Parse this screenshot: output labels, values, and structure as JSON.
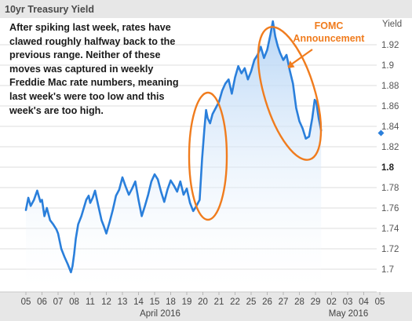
{
  "chart_data": {
    "type": "area",
    "title": "10yr Treasury Yield",
    "ylabel": "Yield",
    "ylim": [
      1.68,
      1.94
    ],
    "yticks": [
      "1.7",
      "1.72",
      "1.74",
      "1.76",
      "1.78",
      "1.8",
      "1.82",
      "1.84",
      "1.86",
      "1.88",
      "1.9",
      "1.92"
    ],
    "xticks": [
      "05",
      "06",
      "07",
      "08",
      "11",
      "12",
      "13",
      "14",
      "15",
      "18",
      "19",
      "20",
      "21",
      "22",
      "25",
      "26",
      "27",
      "28",
      "29",
      "02",
      "03",
      "04",
      "05"
    ],
    "month_labels": [
      "April 2016",
      "May 2016"
    ],
    "last_value": 1.836,
    "grid": true,
    "series": [
      {
        "x": [
          0,
          0.15,
          0.3,
          0.5,
          0.7,
          0.9,
          1,
          1.15,
          1.3,
          1.5,
          1.7,
          1.9,
          2,
          2.2,
          2.4,
          2.6,
          2.8,
          2.9,
          3,
          3.1,
          3.25,
          3.45,
          3.6,
          3.75,
          3.9,
          4,
          4.15,
          4.3,
          4.5,
          4.7,
          4.85,
          5,
          5.2,
          5.4,
          5.6,
          5.8,
          6,
          6.2,
          6.4,
          6.6,
          6.8,
          7,
          7.2,
          7.4,
          7.6,
          7.8,
          8,
          8.2,
          8.4,
          8.6,
          8.8,
          9,
          9.2,
          9.4,
          9.6,
          9.8,
          10,
          10.2,
          10.4,
          10.6,
          10.8,
          10.95,
          11.1,
          11.2,
          11.3,
          11.45,
          11.6,
          11.8,
          12,
          12.2,
          12.4,
          12.6,
          12.8,
          13,
          13.2,
          13.4,
          13.6,
          13.8,
          14,
          14.2,
          14.4,
          14.6,
          14.8,
          15,
          15.2,
          15.35,
          15.5,
          15.65,
          15.8,
          16,
          16.2,
          16.4,
          16.6,
          16.8,
          17,
          17.2,
          17.4,
          17.6,
          17.8,
          17.95,
          18.05,
          18.2,
          18.35
        ],
        "y": [
          1.758,
          1.77,
          1.762,
          1.768,
          1.777,
          1.766,
          1.768,
          1.752,
          1.76,
          1.748,
          1.744,
          1.739,
          1.735,
          1.72,
          1.712,
          1.705,
          1.697,
          1.703,
          1.715,
          1.73,
          1.744,
          1.752,
          1.76,
          1.768,
          1.772,
          1.765,
          1.77,
          1.777,
          1.762,
          1.748,
          1.742,
          1.735,
          1.746,
          1.758,
          1.772,
          1.778,
          1.79,
          1.781,
          1.773,
          1.779,
          1.786,
          1.768,
          1.752,
          1.762,
          1.773,
          1.786,
          1.793,
          1.788,
          1.776,
          1.766,
          1.778,
          1.787,
          1.782,
          1.776,
          1.786,
          1.773,
          1.779,
          1.765,
          1.757,
          1.762,
          1.768,
          1.808,
          1.838,
          1.856,
          1.848,
          1.843,
          1.852,
          1.858,
          1.864,
          1.875,
          1.882,
          1.886,
          1.872,
          1.888,
          1.899,
          1.892,
          1.897,
          1.886,
          1.894,
          1.905,
          1.91,
          1.918,
          1.907,
          1.915,
          1.93,
          1.943,
          1.928,
          1.919,
          1.912,
          1.905,
          1.91,
          1.895,
          1.882,
          1.858,
          1.845,
          1.838,
          1.828,
          1.83,
          1.848,
          1.866,
          1.864,
          1.848,
          1.836
        ]
      }
    ]
  },
  "annotations": {
    "main_text": "After spiking last week, rates have clawed roughly halfway back to the previous range. Neither of these moves was captured in weekly Freddie Mac rate numbers, meaning last week's were too low and this week's are too high.",
    "fomc_label": "FOMC Announcement"
  },
  "colors": {
    "line": "#2a7fdb",
    "fill_top": "#b3d3f5",
    "highlight": "#f07c1e",
    "grid": "#dcdcdc"
  }
}
